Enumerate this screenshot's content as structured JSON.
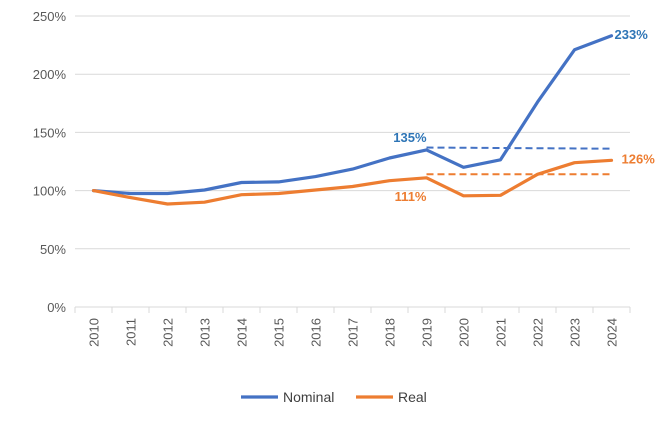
{
  "chart_data": {
    "type": "line",
    "title": "",
    "xlabel": "",
    "ylabel": "",
    "x": [
      "2010",
      "2011",
      "2012",
      "2013",
      "2014",
      "2015",
      "2016",
      "2017",
      "2018",
      "2019",
      "2020",
      "2021",
      "2022",
      "2023",
      "2024"
    ],
    "ylim": [
      0,
      250
    ],
    "yticks": [
      0,
      50,
      100,
      150,
      200,
      250
    ],
    "ytick_labels": [
      "0%",
      "50%",
      "100%",
      "150%",
      "200%",
      "250%"
    ],
    "grid": true,
    "legend_position": "bottom",
    "series": [
      {
        "name": "Nominal",
        "color": "#4472C4",
        "values": [
          100,
          97.5,
          97.5,
          100.5,
          107,
          107.5,
          112,
          118.5,
          128,
          135,
          120,
          126.5,
          176,
          221,
          233
        ]
      },
      {
        "name": "Real",
        "color": "#ED7D31",
        "values": [
          100,
          94,
          88.5,
          90,
          96.5,
          97.5,
          100.5,
          103.5,
          108.5,
          111,
          95.5,
          96,
          114,
          124,
          126
        ]
      }
    ],
    "reference_lines": [
      {
        "series": "Nominal",
        "from": "2019",
        "to": "2024",
        "y_start": 137,
        "y_end": 136,
        "style": "dashed",
        "color": "#4472C4"
      },
      {
        "series": "Real",
        "from": "2019",
        "to": "2024",
        "y_start": 114,
        "y_end": 114,
        "style": "dashed",
        "color": "#ED7D31"
      }
    ],
    "annotations": [
      {
        "text": "135%",
        "x": "2019",
        "y": 135,
        "color": "#2E75B6"
      },
      {
        "text": "233%",
        "x": "2024",
        "y": 233,
        "color": "#2E75B6"
      },
      {
        "text": "111%",
        "x": "2019",
        "y": 111,
        "color": "#ED7D31"
      },
      {
        "text": "126%",
        "x": "2024",
        "y": 126,
        "color": "#ED7D31"
      }
    ]
  }
}
